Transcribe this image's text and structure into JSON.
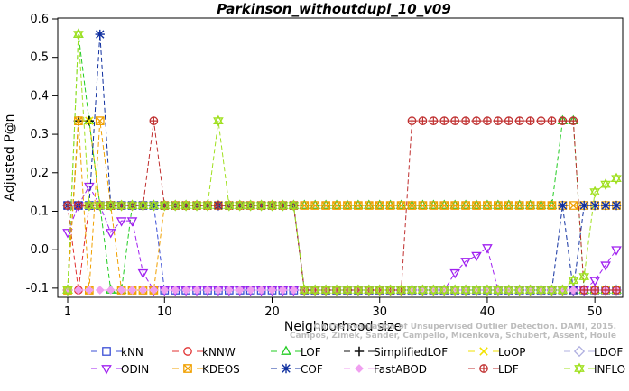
{
  "chart_data": {
    "type": "line",
    "title": "Parkinson_withoutdupl_10_v09",
    "xlabel": "Neighborhood size",
    "ylabel": "Adjusted P@n",
    "xlim": [
      1,
      52
    ],
    "ylim": [
      -0.12,
      0.6
    ],
    "x_ticks": [
      1,
      10,
      20,
      30,
      40,
      50
    ],
    "y_ticks": [
      -0.1,
      0.0,
      0.1,
      0.2,
      0.3,
      0.4,
      0.5,
      0.6
    ],
    "y_tick_labels": [
      "-0.1",
      "0.0",
      "0.1",
      "0.2",
      "0.3",
      "0.4",
      "0.5",
      "0.6"
    ],
    "watermark": [
      "Campos, Zimek, Sander, Campello, Micenkova, Schubert, Assent, Houle",
      "On the Evaluation of Unsupervised Outlier Detection. DAMI, 2015."
    ],
    "series": [
      {
        "name": "kNN",
        "color": "#3b4fd6",
        "marker": "square",
        "y": [
          0.115,
          0.115,
          0.115,
          0.115,
          0.115,
          0.115,
          0.115,
          0.115,
          0.115,
          -0.105,
          -0.105,
          -0.105,
          -0.105,
          -0.105,
          -0.105,
          -0.105,
          -0.105,
          -0.105,
          -0.105,
          -0.105,
          -0.105,
          -0.105,
          -0.105,
          -0.105,
          -0.105,
          -0.105,
          -0.105,
          -0.105,
          -0.105,
          -0.105,
          -0.105,
          -0.105,
          -0.105,
          -0.105,
          -0.105,
          -0.105,
          -0.105,
          -0.105,
          -0.105,
          -0.105,
          -0.105,
          -0.105,
          -0.105,
          -0.105,
          -0.105,
          -0.105,
          -0.105,
          -0.105,
          -0.105,
          -0.105,
          -0.105,
          -0.105
        ]
      },
      {
        "name": "kNNW",
        "color": "#e03030",
        "marker": "circle",
        "y": [
          0.115,
          -0.105,
          0.115,
          0.115,
          0.115,
          0.115,
          0.115,
          0.115,
          0.115,
          0.115,
          0.115,
          0.115,
          0.115,
          0.115,
          0.115,
          0.115,
          0.115,
          0.115,
          0.115,
          0.115,
          0.115,
          0.115,
          -0.105,
          -0.105,
          -0.105,
          -0.105,
          -0.105,
          -0.105,
          -0.105,
          -0.105,
          -0.105,
          -0.105,
          -0.105,
          -0.105,
          -0.105,
          -0.105,
          -0.105,
          -0.105,
          -0.105,
          -0.105,
          -0.105,
          -0.105,
          -0.105,
          -0.105,
          -0.105,
          -0.105,
          -0.105,
          -0.105,
          -0.105,
          -0.105,
          -0.105,
          -0.105
        ]
      },
      {
        "name": "LOF",
        "color": "#22cc22",
        "marker": "triangle-up",
        "y": [
          -0.105,
          0.56,
          0.335,
          0.115,
          -0.105,
          -0.105,
          0.115,
          0.115,
          0.115,
          0.115,
          0.115,
          0.115,
          0.115,
          0.115,
          0.115,
          0.115,
          0.115,
          0.115,
          0.115,
          0.115,
          0.115,
          0.115,
          0.115,
          0.115,
          0.115,
          0.115,
          0.115,
          0.115,
          0.115,
          0.115,
          0.115,
          0.115,
          0.115,
          0.115,
          0.115,
          0.115,
          0.115,
          0.115,
          0.115,
          0.115,
          0.115,
          0.115,
          0.115,
          0.115,
          0.115,
          0.115,
          0.335,
          0.335,
          -0.105,
          -0.105,
          -0.105,
          -0.105
        ]
      },
      {
        "name": "SimplifiedLOF",
        "color": "#111111",
        "marker": "plus",
        "y": [
          -0.105,
          0.335,
          0.335,
          0.115,
          0.115,
          0.115,
          0.115,
          0.115,
          0.115,
          0.115,
          0.115,
          0.115,
          0.115,
          0.115,
          0.115,
          0.115,
          0.115,
          0.115,
          0.115,
          0.115,
          0.115,
          0.115,
          -0.105,
          -0.105,
          -0.105,
          -0.105,
          -0.105,
          -0.105,
          -0.105,
          -0.105,
          -0.105,
          -0.105,
          -0.105,
          -0.105,
          -0.105,
          -0.105,
          -0.105,
          -0.105,
          -0.105,
          -0.105,
          -0.105,
          -0.105,
          -0.105,
          -0.105,
          -0.105,
          -0.105,
          -0.105,
          -0.105,
          -0.105,
          -0.105,
          -0.105,
          -0.105
        ]
      },
      {
        "name": "LoOP",
        "color": "#f2e200",
        "marker": "x",
        "y": [
          -0.105,
          0.335,
          0.335,
          0.115,
          0.115,
          0.115,
          0.115,
          0.115,
          0.115,
          0.115,
          0.115,
          0.115,
          0.115,
          0.115,
          0.115,
          0.115,
          0.115,
          0.115,
          0.115,
          0.115,
          0.115,
          0.115,
          -0.105,
          -0.105,
          -0.105,
          -0.105,
          -0.105,
          -0.105,
          -0.105,
          -0.105,
          -0.105,
          -0.105,
          -0.105,
          -0.105,
          -0.105,
          -0.105,
          -0.105,
          -0.105,
          -0.105,
          -0.105,
          -0.105,
          -0.105,
          -0.105,
          -0.105,
          -0.105,
          -0.105,
          -0.105,
          -0.105,
          -0.105,
          -0.105,
          -0.105,
          -0.105
        ]
      },
      {
        "name": "LDOF",
        "color": "#b0b0e0",
        "marker": "diamond",
        "y": [
          0.115,
          0.115,
          0.115,
          0.115,
          0.115,
          0.115,
          0.115,
          0.115,
          0.115,
          0.115,
          0.115,
          0.115,
          0.115,
          0.115,
          0.115,
          0.115,
          0.115,
          0.115,
          0.115,
          0.115,
          0.115,
          0.115,
          -0.105,
          -0.105,
          -0.105,
          -0.105,
          -0.105,
          -0.105,
          -0.105,
          -0.105,
          -0.105,
          -0.105,
          -0.105,
          -0.105,
          -0.105,
          -0.105,
          -0.105,
          -0.105,
          -0.105,
          -0.105,
          -0.105,
          -0.105,
          -0.105,
          -0.105,
          -0.105,
          -0.105,
          -0.105,
          -0.105,
          -0.105,
          -0.105,
          -0.105,
          -0.105
        ]
      },
      {
        "name": "ODIN",
        "color": "#a020f0",
        "marker": "triangle-down",
        "y": [
          0.045,
          0.115,
          0.165,
          0.115,
          0.045,
          0.075,
          0.075,
          -0.06,
          -0.105,
          -0.105,
          -0.105,
          -0.105,
          -0.105,
          -0.105,
          -0.105,
          -0.105,
          -0.105,
          -0.105,
          -0.105,
          -0.105,
          -0.105,
          -0.105,
          -0.105,
          -0.105,
          -0.105,
          -0.105,
          -0.105,
          -0.105,
          -0.105,
          -0.105,
          -0.105,
          -0.105,
          -0.105,
          -0.105,
          -0.105,
          -0.105,
          -0.06,
          -0.03,
          -0.015,
          0.005,
          -0.105,
          -0.105,
          -0.105,
          -0.105,
          -0.105,
          -0.105,
          -0.105,
          -0.105,
          -0.105,
          -0.08,
          -0.04,
          0.0
        ]
      },
      {
        "name": "KDEOS",
        "color": "#f0a000",
        "marker": "square-x",
        "y": [
          -0.105,
          0.335,
          -0.105,
          0.335,
          0.115,
          -0.105,
          -0.105,
          -0.105,
          -0.105,
          0.115,
          0.115,
          0.115,
          0.115,
          0.115,
          0.115,
          0.115,
          0.115,
          0.115,
          0.115,
          0.115,
          0.115,
          0.115,
          0.115,
          0.115,
          0.115,
          0.115,
          0.115,
          0.115,
          0.115,
          0.115,
          0.115,
          0.115,
          0.115,
          0.115,
          0.115,
          0.115,
          0.115,
          0.115,
          0.115,
          0.115,
          0.115,
          0.115,
          0.115,
          0.115,
          0.115,
          0.115,
          0.115,
          0.115,
          0.115,
          0.115,
          0.115,
          0.115
        ]
      },
      {
        "name": "COF",
        "color": "#1030a0",
        "marker": "asterisk",
        "y": [
          0.115,
          0.115,
          0.115,
          0.56,
          0.115,
          0.115,
          0.115,
          0.115,
          0.115,
          0.115,
          0.115,
          0.115,
          0.115,
          0.115,
          0.115,
          0.115,
          0.115,
          0.115,
          0.115,
          0.115,
          0.115,
          0.115,
          -0.105,
          -0.105,
          -0.105,
          -0.105,
          -0.105,
          -0.105,
          -0.105,
          -0.105,
          -0.105,
          -0.105,
          -0.105,
          -0.105,
          -0.105,
          -0.105,
          -0.105,
          -0.105,
          -0.105,
          -0.105,
          -0.105,
          -0.105,
          -0.105,
          -0.105,
          -0.105,
          -0.105,
          0.115,
          -0.105,
          0.115,
          0.115,
          0.115,
          0.115
        ]
      },
      {
        "name": "FastABOD",
        "color": "#f0a0f0",
        "marker": "diamond-filled",
        "y": [
          -0.105,
          -0.105,
          -0.105,
          -0.105,
          -0.105,
          -0.105,
          -0.105,
          -0.105,
          -0.105,
          -0.105,
          -0.105,
          -0.105,
          -0.105,
          -0.105,
          -0.105,
          -0.105,
          -0.105,
          -0.105,
          -0.105,
          -0.105,
          -0.105,
          -0.105,
          -0.105,
          -0.105,
          -0.105,
          -0.105,
          -0.105,
          -0.105,
          -0.105,
          -0.105,
          -0.105,
          -0.105,
          -0.105,
          -0.105,
          -0.105,
          -0.105,
          -0.105,
          -0.105,
          -0.105,
          -0.105,
          -0.105,
          -0.105,
          -0.105,
          -0.105,
          -0.105,
          -0.105,
          -0.105,
          -0.105,
          -0.105,
          -0.105,
          -0.105,
          -0.105
        ]
      },
      {
        "name": "LDF",
        "color": "#c03030",
        "marker": "circle-plus",
        "y": [
          0.115,
          0.115,
          0.115,
          0.115,
          0.115,
          0.115,
          0.115,
          0.115,
          0.335,
          0.115,
          0.115,
          0.115,
          0.115,
          0.115,
          0.115,
          0.115,
          0.115,
          0.115,
          0.115,
          0.115,
          0.115,
          0.115,
          -0.105,
          -0.105,
          -0.105,
          -0.105,
          -0.105,
          -0.105,
          -0.105,
          -0.105,
          -0.105,
          -0.105,
          0.335,
          0.335,
          0.335,
          0.335,
          0.335,
          0.335,
          0.335,
          0.335,
          0.335,
          0.335,
          0.335,
          0.335,
          0.335,
          0.335,
          0.335,
          0.335,
          -0.105,
          -0.105,
          -0.105,
          -0.105
        ]
      },
      {
        "name": "INFLO",
        "color": "#a0e020",
        "marker": "star",
        "y": [
          -0.105,
          0.56,
          0.115,
          0.115,
          0.115,
          0.115,
          0.115,
          0.115,
          0.115,
          0.115,
          0.115,
          0.115,
          0.115,
          0.115,
          0.335,
          0.115,
          0.115,
          0.115,
          0.115,
          0.115,
          0.115,
          0.115,
          -0.105,
          -0.105,
          -0.105,
          -0.105,
          -0.105,
          -0.105,
          -0.105,
          -0.105,
          -0.105,
          -0.105,
          -0.105,
          -0.105,
          -0.105,
          -0.105,
          -0.105,
          -0.105,
          -0.105,
          -0.105,
          -0.105,
          -0.105,
          -0.105,
          -0.105,
          -0.105,
          -0.105,
          -0.105,
          -0.08,
          -0.07,
          0.15,
          0.17,
          0.185
        ]
      }
    ],
    "legend_position": "bottom",
    "grid": false
  }
}
